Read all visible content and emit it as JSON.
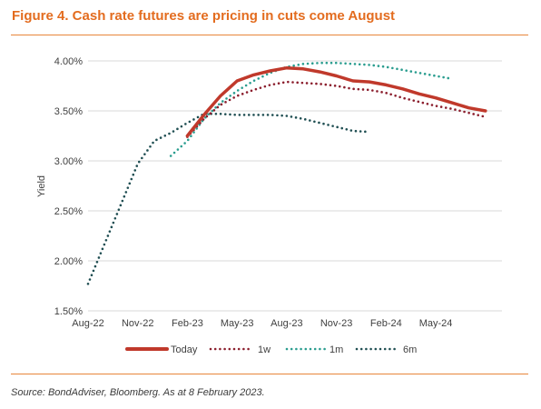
{
  "figure_title": "Figure 4. Cash rate futures are pricing in cuts come August",
  "source_note": "Source: BondAdviser, Bloomberg. As at 8 February 2023.",
  "colors": {
    "title": "#e36c1f",
    "rule": "#e8853a",
    "gridline": "#d9d9d9",
    "today": "#c0392b",
    "1w": "#8b1e2d",
    "1m": "#2a9d8f",
    "6m": "#1f4e52"
  },
  "chart_data": {
    "type": "line",
    "title": "",
    "xlabel": "",
    "ylabel": "Yield",
    "x_ticks": [
      "Aug-22",
      "Nov-22",
      "Feb-23",
      "May-23",
      "Aug-23",
      "Nov-23",
      "Feb-24",
      "May-24"
    ],
    "y_ticks": [
      "1.50%",
      "2.00%",
      "2.50%",
      "3.00%",
      "3.50%",
      "4.00%"
    ],
    "ylim": [
      1.5,
      4.0
    ],
    "x_unit": "month",
    "xlim": [
      "Aug-22",
      "Sep-24"
    ],
    "grid": "horizontal",
    "legend_position": "bottom",
    "series": [
      {
        "name": "Today",
        "style": "solid",
        "color": "#c0392b",
        "x": [
          "Feb-23",
          "Mar-23",
          "Apr-23",
          "May-23",
          "Jun-23",
          "Jul-23",
          "Aug-23",
          "Sep-23",
          "Oct-23",
          "Nov-23",
          "Dec-23",
          "Jan-24",
          "Feb-24",
          "Mar-24",
          "Apr-24",
          "May-24",
          "Jun-24",
          "Jul-24",
          "Aug-24"
        ],
        "y": [
          3.25,
          3.46,
          3.65,
          3.8,
          3.86,
          3.9,
          3.93,
          3.92,
          3.89,
          3.85,
          3.8,
          3.79,
          3.76,
          3.72,
          3.67,
          3.63,
          3.58,
          3.53,
          3.5
        ]
      },
      {
        "name": "1w",
        "style": "dotted",
        "color": "#8b1e2d",
        "x": [
          "Feb-23",
          "Mar-23",
          "Apr-23",
          "May-23",
          "Jun-23",
          "Jul-23",
          "Aug-23",
          "Sep-23",
          "Oct-23",
          "Nov-23",
          "Dec-23",
          "Jan-24",
          "Feb-24",
          "Mar-24",
          "Apr-24",
          "May-24",
          "Jun-24",
          "Jul-24",
          "Aug-24"
        ],
        "y": [
          3.24,
          3.42,
          3.56,
          3.65,
          3.71,
          3.76,
          3.79,
          3.78,
          3.77,
          3.75,
          3.72,
          3.71,
          3.68,
          3.63,
          3.59,
          3.55,
          3.52,
          3.48,
          3.44
        ]
      },
      {
        "name": "1m",
        "style": "dotted",
        "color": "#2a9d8f",
        "x": [
          "Jan-23",
          "Feb-23",
          "Mar-23",
          "Apr-23",
          "May-23",
          "Jun-23",
          "Jul-23",
          "Aug-23",
          "Sep-23",
          "Oct-23",
          "Nov-23",
          "Dec-23",
          "Jan-24",
          "Feb-24",
          "Mar-24",
          "Apr-24",
          "May-24",
          "Jun-24"
        ],
        "y": [
          3.05,
          3.2,
          3.42,
          3.58,
          3.7,
          3.8,
          3.88,
          3.94,
          3.97,
          3.98,
          3.98,
          3.97,
          3.96,
          3.94,
          3.91,
          3.88,
          3.85,
          3.82
        ]
      },
      {
        "name": "6m",
        "style": "dotted",
        "color": "#1f4e52",
        "x": [
          "Aug-22",
          "Sep-22",
          "Oct-22",
          "Nov-22",
          "Dec-22",
          "Jan-23",
          "Feb-23",
          "Mar-23",
          "Apr-23",
          "May-23",
          "Jun-23",
          "Jul-23",
          "Aug-23",
          "Sep-23",
          "Oct-23",
          "Nov-23",
          "Dec-23",
          "Jan-24"
        ],
        "y": [
          1.77,
          2.17,
          2.57,
          2.97,
          3.2,
          3.28,
          3.38,
          3.47,
          3.47,
          3.46,
          3.46,
          3.46,
          3.45,
          3.42,
          3.38,
          3.34,
          3.3,
          3.29
        ]
      }
    ]
  }
}
